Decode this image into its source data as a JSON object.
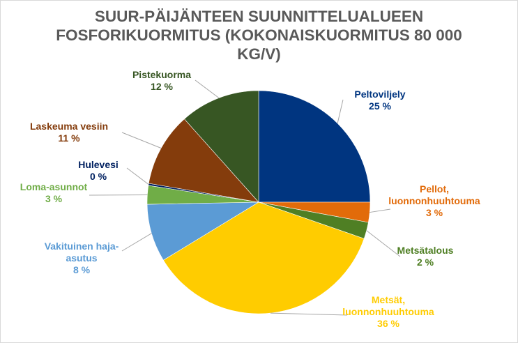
{
  "chart_data": {
    "type": "pie",
    "title_lines": [
      "SUUR-PÄIJÄNTEEN SUUNNITTELUALUEEN",
      "FOSFORIKUORMITUS (KOKONAISKUORMITUS 80 000",
      "KG/V)"
    ],
    "slices": [
      {
        "label": [
          "Peltoviljely"
        ],
        "pct_label": "25 %",
        "value": 25.0,
        "color": "#003580"
      },
      {
        "label": [
          "Pellot,",
          "luonnonhuuhtouma"
        ],
        "pct_label": "3 %",
        "value": 2.9,
        "color": "#e26b0a"
      },
      {
        "label": [
          "Metsätalous"
        ],
        "pct_label": "2 %",
        "value": 2.4,
        "color": "#4f7f24"
      },
      {
        "label": [
          "Metsät,",
          "luonnonhuuhtouma"
        ],
        "pct_label": "36 %",
        "value": 36.0,
        "color": "#ffcc00"
      },
      {
        "label": [
          "Vakituinen haja-",
          "asutus"
        ],
        "pct_label": "8 %",
        "value": 8.4,
        "color": "#5b9bd5"
      },
      {
        "label": [
          "Loma-asunnot"
        ],
        "pct_label": "3 %",
        "value": 2.7,
        "color": "#70ad47"
      },
      {
        "label": [
          "Hulevesi"
        ],
        "pct_label": "0 %",
        "value": 0.3,
        "color": "#002060"
      },
      {
        "label": [
          "Laskeuma vesiin"
        ],
        "pct_label": "11 %",
        "value": 10.7,
        "color": "#843c0c"
      },
      {
        "label": [
          "Pistekuorma"
        ],
        "pct_label": "12 %",
        "value": 11.6,
        "color": "#375623"
      }
    ]
  }
}
